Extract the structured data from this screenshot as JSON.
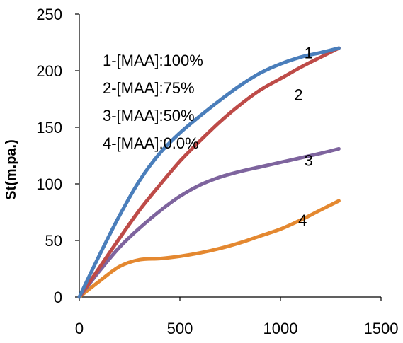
{
  "chart_data": {
    "type": "line",
    "title": "",
    "xlabel": "",
    "ylabel": "St(m.pa.)",
    "xlim": [
      0,
      1500
    ],
    "ylim": [
      0,
      250
    ],
    "xticks": [
      0,
      500,
      1000,
      1500
    ],
    "yticks": [
      0,
      50,
      100,
      150,
      200,
      250
    ],
    "grid": false,
    "legend_lines": [
      "1-[MAA]:100%",
      "2-[MAA]:75%",
      "3-[MAA]:50%",
      "4-[MAA]:0.0%"
    ],
    "series": [
      {
        "name": "1",
        "color": "#4a7ebb",
        "x": [
          0,
          100,
          200,
          300,
          400,
          500,
          600,
          700,
          800,
          900,
          1000,
          1100,
          1200,
          1290
        ],
        "y": [
          0,
          37,
          72,
          103,
          127,
          145,
          160,
          174,
          187,
          198,
          206,
          212,
          216,
          220
        ]
      },
      {
        "name": "2",
        "color": "#be4b48",
        "x": [
          0,
          100,
          200,
          300,
          400,
          500,
          600,
          700,
          800,
          900,
          1000,
          1100,
          1200,
          1290
        ],
        "y": [
          0,
          26,
          52,
          77,
          99,
          120,
          138,
          155,
          170,
          183,
          193,
          203,
          212,
          220
        ]
      },
      {
        "name": "3",
        "color": "#7e649e",
        "x": [
          0,
          100,
          200,
          300,
          400,
          500,
          600,
          700,
          800,
          900,
          1000,
          1100,
          1200,
          1290
        ],
        "y": [
          0,
          23,
          44,
          61,
          76,
          89,
          99,
          106,
          111,
          115,
          119,
          123,
          127,
          131
        ]
      },
      {
        "name": "4",
        "color": "#e48830",
        "x": [
          0,
          100,
          200,
          300,
          400,
          500,
          600,
          700,
          800,
          900,
          1000,
          1100,
          1200,
          1290
        ],
        "y": [
          0,
          14,
          27,
          33,
          34,
          36,
          39,
          43,
          48,
          54,
          60,
          68,
          77,
          85
        ]
      }
    ],
    "series_labels": [
      {
        "text": "1",
        "x": 1140,
        "y": 216
      },
      {
        "text": "2",
        "x": 1090,
        "y": 179
      },
      {
        "text": "3",
        "x": 1140,
        "y": 121
      },
      {
        "text": "4",
        "x": 1110,
        "y": 68
      }
    ]
  }
}
